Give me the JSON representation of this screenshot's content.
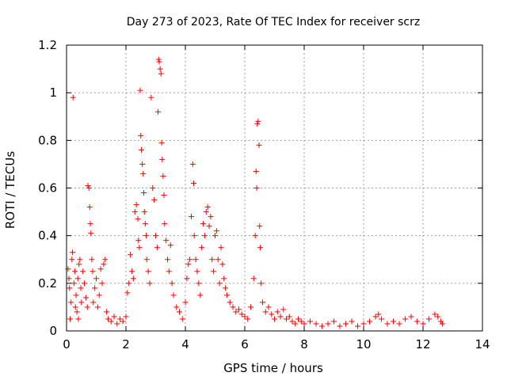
{
  "chart_data": {
    "type": "scatter",
    "title": "Day 273 of 2023, Rate Of TEC Index for receiver scrz",
    "xlabel": "GPS time / hours",
    "ylabel": "ROTI / TECUs",
    "xlim": [
      0,
      14
    ],
    "ylim": [
      0,
      1.2
    ],
    "x_ticks": [
      0,
      2,
      4,
      6,
      8,
      10,
      12,
      14
    ],
    "x_tick_labels": [
      "0",
      "2",
      "4",
      "6",
      "8",
      "10",
      "12",
      "14"
    ],
    "y_ticks": [
      0,
      0.2,
      0.4,
      0.6,
      0.8,
      1.0,
      1.2
    ],
    "y_tick_labels": [
      "0",
      "0.2",
      "0.4",
      "0.6",
      "0.8",
      "1",
      "1.2"
    ],
    "grid": true,
    "marker": "+",
    "series": [
      {
        "name": "ROTI",
        "color": "#ff0000",
        "points": [
          [
            0.05,
            0.26
          ],
          [
            0.08,
            0.22
          ],
          [
            0.1,
            0.18
          ],
          [
            0.12,
            0.05
          ],
          [
            0.15,
            0.12
          ],
          [
            0.18,
            0.3
          ],
          [
            0.2,
            0.33
          ],
          [
            0.22,
            0.98
          ],
          [
            0.25,
            0.2
          ],
          [
            0.28,
            0.25
          ],
          [
            0.3,
            0.1
          ],
          [
            0.32,
            0.15
          ],
          [
            0.35,
            0.08
          ],
          [
            0.38,
            0.22
          ],
          [
            0.4,
            0.05
          ],
          [
            0.42,
            0.28
          ],
          [
            0.45,
            0.3
          ],
          [
            0.48,
            0.18
          ],
          [
            0.5,
            0.12
          ],
          [
            0.55,
            0.25
          ],
          [
            0.6,
            0.2
          ],
          [
            0.65,
            0.14
          ],
          [
            0.7,
            0.1
          ],
          [
            0.72,
            0.61
          ],
          [
            0.75,
            0.6
          ],
          [
            0.78,
            0.52
          ],
          [
            0.8,
            0.45
          ],
          [
            0.82,
            0.41
          ],
          [
            0.85,
            0.3
          ],
          [
            0.88,
            0.25
          ],
          [
            0.9,
            0.12
          ],
          [
            0.95,
            0.18
          ],
          [
            1.0,
            0.22
          ],
          [
            1.05,
            0.1
          ],
          [
            1.1,
            0.15
          ],
          [
            1.15,
            0.26
          ],
          [
            1.2,
            0.2
          ],
          [
            1.25,
            0.28
          ],
          [
            1.3,
            0.3
          ],
          [
            1.35,
            0.08
          ],
          [
            1.4,
            0.05
          ],
          [
            1.5,
            0.04
          ],
          [
            1.6,
            0.06
          ],
          [
            1.7,
            0.03
          ],
          [
            1.8,
            0.05
          ],
          [
            1.9,
            0.04
          ],
          [
            2.0,
            0.06
          ],
          [
            2.05,
            0.16
          ],
          [
            2.1,
            0.2
          ],
          [
            2.15,
            0.32
          ],
          [
            2.2,
            0.25
          ],
          [
            2.25,
            0.22
          ],
          [
            2.3,
            0.5
          ],
          [
            2.35,
            0.53
          ],
          [
            2.4,
            0.47
          ],
          [
            2.42,
            0.38
          ],
          [
            2.45,
            0.35
          ],
          [
            2.48,
            1.01
          ],
          [
            2.5,
            0.82
          ],
          [
            2.52,
            0.76
          ],
          [
            2.55,
            0.7
          ],
          [
            2.58,
            0.66
          ],
          [
            2.6,
            0.58
          ],
          [
            2.62,
            0.5
          ],
          [
            2.65,
            0.45
          ],
          [
            2.68,
            0.4
          ],
          [
            2.7,
            0.3
          ],
          [
            2.75,
            0.25
          ],
          [
            2.8,
            0.2
          ],
          [
            2.85,
            0.98
          ],
          [
            2.9,
            0.6
          ],
          [
            2.95,
            0.55
          ],
          [
            3.0,
            0.4
          ],
          [
            3.05,
            0.35
          ],
          [
            3.08,
            0.92
          ],
          [
            3.1,
            1.14
          ],
          [
            3.12,
            1.13
          ],
          [
            3.15,
            1.1
          ],
          [
            3.18,
            1.08
          ],
          [
            3.2,
            0.79
          ],
          [
            3.22,
            0.72
          ],
          [
            3.25,
            0.65
          ],
          [
            3.28,
            0.57
          ],
          [
            3.3,
            0.45
          ],
          [
            3.35,
            0.38
          ],
          [
            3.4,
            0.3
          ],
          [
            3.45,
            0.25
          ],
          [
            3.5,
            0.36
          ],
          [
            3.55,
            0.2
          ],
          [
            3.6,
            0.15
          ],
          [
            3.7,
            0.1
          ],
          [
            3.8,
            0.08
          ],
          [
            3.9,
            0.05
          ],
          [
            4.0,
            0.12
          ],
          [
            4.05,
            0.22
          ],
          [
            4.1,
            0.28
          ],
          [
            4.15,
            0.3
          ],
          [
            4.2,
            0.48
          ],
          [
            4.25,
            0.7
          ],
          [
            4.28,
            0.62
          ],
          [
            4.3,
            0.4
          ],
          [
            4.35,
            0.3
          ],
          [
            4.4,
            0.25
          ],
          [
            4.45,
            0.2
          ],
          [
            4.5,
            0.15
          ],
          [
            4.55,
            0.35
          ],
          [
            4.6,
            0.45
          ],
          [
            4.65,
            0.4
          ],
          [
            4.7,
            0.5
          ],
          [
            4.75,
            0.52
          ],
          [
            4.8,
            0.44
          ],
          [
            4.85,
            0.48
          ],
          [
            4.9,
            0.3
          ],
          [
            4.95,
            0.25
          ],
          [
            5.0,
            0.4
          ],
          [
            5.05,
            0.42
          ],
          [
            5.1,
            0.3
          ],
          [
            5.15,
            0.2
          ],
          [
            5.2,
            0.35
          ],
          [
            5.25,
            0.28
          ],
          [
            5.3,
            0.22
          ],
          [
            5.35,
            0.18
          ],
          [
            5.4,
            0.15
          ],
          [
            5.5,
            0.12
          ],
          [
            5.6,
            0.1
          ],
          [
            5.7,
            0.08
          ],
          [
            5.8,
            0.09
          ],
          [
            5.9,
            0.07
          ],
          [
            6.0,
            0.06
          ],
          [
            6.1,
            0.05
          ],
          [
            6.2,
            0.1
          ],
          [
            6.3,
            0.22
          ],
          [
            6.35,
            0.4
          ],
          [
            6.38,
            0.67
          ],
          [
            6.4,
            0.6
          ],
          [
            6.42,
            0.87
          ],
          [
            6.45,
            0.88
          ],
          [
            6.48,
            0.78
          ],
          [
            6.5,
            0.44
          ],
          [
            6.52,
            0.35
          ],
          [
            6.55,
            0.2
          ],
          [
            6.6,
            0.12
          ],
          [
            6.7,
            0.08
          ],
          [
            6.8,
            0.1
          ],
          [
            6.9,
            0.07
          ],
          [
            7.0,
            0.05
          ],
          [
            7.1,
            0.08
          ],
          [
            7.2,
            0.06
          ],
          [
            7.3,
            0.09
          ],
          [
            7.4,
            0.05
          ],
          [
            7.5,
            0.06
          ],
          [
            7.6,
            0.04
          ],
          [
            7.7,
            0.03
          ],
          [
            7.8,
            0.05
          ],
          [
            7.9,
            0.04
          ],
          [
            8.0,
            0.03
          ],
          [
            8.2,
            0.04
          ],
          [
            8.4,
            0.03
          ],
          [
            8.6,
            0.02
          ],
          [
            8.8,
            0.03
          ],
          [
            9.0,
            0.04
          ],
          [
            9.2,
            0.02
          ],
          [
            9.4,
            0.03
          ],
          [
            9.6,
            0.04
          ],
          [
            9.8,
            0.02
          ],
          [
            10.0,
            0.03
          ],
          [
            10.2,
            0.04
          ],
          [
            10.4,
            0.06
          ],
          [
            10.5,
            0.07
          ],
          [
            10.6,
            0.05
          ],
          [
            10.8,
            0.03
          ],
          [
            11.0,
            0.04
          ],
          [
            11.2,
            0.03
          ],
          [
            11.4,
            0.05
          ],
          [
            11.6,
            0.06
          ],
          [
            11.8,
            0.04
          ],
          [
            12.0,
            0.03
          ],
          [
            12.2,
            0.05
          ],
          [
            12.4,
            0.07
          ],
          [
            12.5,
            0.06
          ],
          [
            12.6,
            0.04
          ],
          [
            12.65,
            0.03
          ]
        ]
      }
    ]
  }
}
